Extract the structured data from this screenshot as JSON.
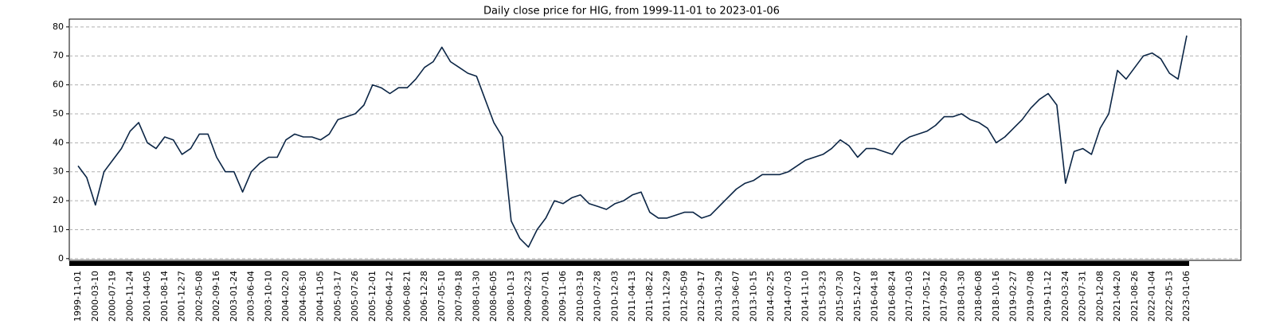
{
  "chart_data": {
    "type": "line",
    "title": "Daily close price for HIG, from 1999-11-01 to 2023-01-06",
    "categories": [
      "1999-11-01",
      null,
      "2000-03-10",
      null,
      "2000-07-19",
      null,
      "2000-11-24",
      null,
      "2001-04-05",
      null,
      "2001-08-14",
      null,
      "2001-12-27",
      null,
      "2002-05-08",
      null,
      "2002-09-16",
      null,
      "2003-01-24",
      null,
      "2003-06-04",
      null,
      "2003-10-10",
      null,
      "2004-02-20",
      null,
      "2004-06-30",
      null,
      "2004-11-05",
      null,
      "2005-03-17",
      null,
      "2005-07-26",
      null,
      "2005-12-01",
      null,
      "2006-04-12",
      null,
      "2006-08-21",
      null,
      "2006-12-28",
      null,
      "2007-05-10",
      null,
      "2007-09-18",
      null,
      "2008-01-30",
      null,
      "2008-06-05",
      null,
      "2008-10-13",
      null,
      "2009-02-23",
      null,
      "2009-07-01",
      null,
      "2009-11-06",
      null,
      "2010-03-19",
      null,
      "2010-07-28",
      null,
      "2010-12-03",
      null,
      "2011-04-13",
      null,
      "2011-08-22",
      null,
      "2011-12-29",
      null,
      "2012-05-09",
      null,
      "2012-09-17",
      null,
      "2013-01-29",
      null,
      "2013-06-07",
      null,
      "2013-10-15",
      null,
      "2014-02-25",
      null,
      "2014-07-03",
      null,
      "2014-11-10",
      null,
      "2015-03-23",
      null,
      "2015-07-30",
      null,
      "2015-12-07",
      null,
      "2016-04-18",
      null,
      "2016-08-24",
      null,
      "2017-01-03",
      null,
      "2017-05-12",
      null,
      "2017-09-20",
      null,
      "2018-01-30",
      null,
      "2018-06-08",
      null,
      "2018-10-16",
      null,
      "2019-02-27",
      null,
      "2019-07-08",
      null,
      "2019-11-12",
      null,
      "2020-03-24",
      null,
      "2020-07-31",
      null,
      "2020-12-08",
      null,
      "2021-04-20",
      null,
      "2021-08-26",
      null,
      "2022-01-04",
      null,
      "2022-05-13",
      null,
      "2023-01-06"
    ],
    "series": [
      {
        "name": "HIG",
        "color": "#0b2545",
        "values": [
          32,
          28,
          18.5,
          30,
          34,
          38,
          44,
          47,
          40,
          38,
          42,
          41,
          36,
          38,
          43,
          43,
          35,
          30,
          30,
          23,
          30,
          33,
          35,
          35,
          41,
          43,
          42,
          42,
          41,
          43,
          48,
          49,
          50,
          53,
          60,
          59,
          57,
          59,
          59,
          62,
          66,
          68,
          73,
          68,
          66,
          64,
          63,
          55,
          47,
          42,
          13,
          7,
          4,
          10,
          14,
          20,
          19,
          21,
          22,
          19,
          18,
          17,
          19,
          20,
          22,
          23,
          16,
          14,
          14,
          15,
          16,
          16,
          14,
          15,
          18,
          21,
          24,
          26,
          27,
          29,
          29,
          29,
          30,
          32,
          34,
          35,
          36,
          38,
          41,
          39,
          35,
          38,
          38,
          37,
          36,
          40,
          42,
          43,
          44,
          46,
          49,
          49,
          50,
          48,
          47,
          45,
          40,
          42,
          45,
          48,
          52,
          55,
          57,
          53,
          26,
          37,
          38,
          36,
          45,
          50,
          65,
          62,
          66,
          70,
          71,
          69,
          64,
          62,
          77
        ]
      }
    ],
    "ylim": [
      -0.6,
      82.7
    ],
    "yticks": [
      0,
      10,
      20,
      30,
      40,
      50,
      60,
      70,
      80
    ],
    "grid": true
  }
}
